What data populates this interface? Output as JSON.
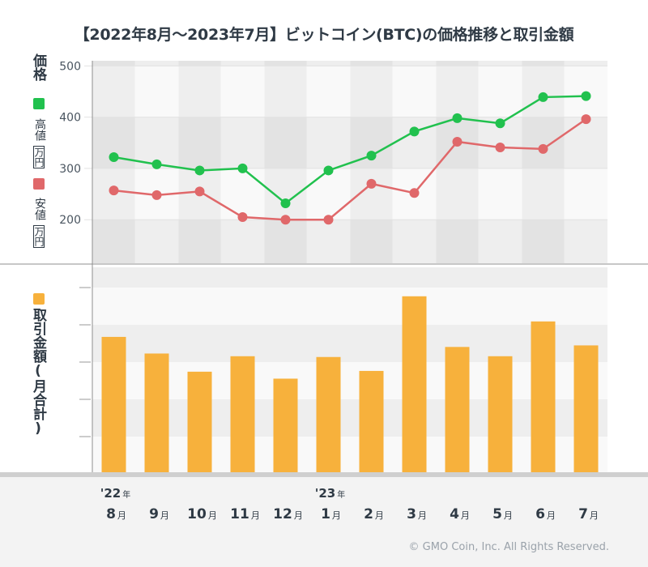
{
  "title": "【2022年8月〜2023年7月】ビットコイン(BTC)の価格推移と取引金額",
  "copyright": "© GMO Coin, Inc. All Rights Reserved.",
  "colors": {
    "high": "#21c14e",
    "low": "#e0686a",
    "volume": "#f7b13c"
  },
  "legend": {
    "price_axis_title": "価格",
    "high_label": "高値",
    "high_unit": "万円",
    "low_label": "安値",
    "low_unit": "万円",
    "volume_axis_title": "取引金額(月合計)"
  },
  "chart_data": [
    {
      "type": "line",
      "categories": [
        "8月",
        "9月",
        "10月",
        "11月",
        "12月",
        "1月",
        "2月",
        "3月",
        "4月",
        "5月",
        "6月",
        "7月"
      ],
      "year_markers": [
        {
          "category": "8月",
          "year": "'22",
          "suffix": "年"
        },
        {
          "category": "1月",
          "year": "'23",
          "suffix": "年"
        }
      ],
      "y_ticks": [
        200,
        300,
        400,
        500
      ],
      "ylim": [
        115,
        510
      ],
      "series": [
        {
          "name": "高値",
          "color": "#21c14e",
          "values": [
            322,
            308,
            296,
            300,
            232,
            296,
            325,
            372,
            398,
            388,
            439,
            441
          ]
        },
        {
          "name": "安値",
          "color": "#e0686a",
          "values": [
            257,
            248,
            255,
            205,
            200,
            200,
            270,
            252,
            352,
            341,
            338,
            396
          ]
        }
      ]
    },
    {
      "type": "bar",
      "categories": [
        "8月",
        "9月",
        "10月",
        "11月",
        "12月",
        "1月",
        "2月",
        "3月",
        "4月",
        "5月",
        "6月",
        "7月"
      ],
      "ylim": [
        0,
        5.3
      ],
      "series": [
        {
          "name": "取引金額(月合計)",
          "color": "#f7b13c",
          "values": [
            3.5,
            3.07,
            2.6,
            3.0,
            2.42,
            2.98,
            2.62,
            4.55,
            3.24,
            3.0,
            3.9,
            3.28
          ]
        }
      ]
    }
  ]
}
